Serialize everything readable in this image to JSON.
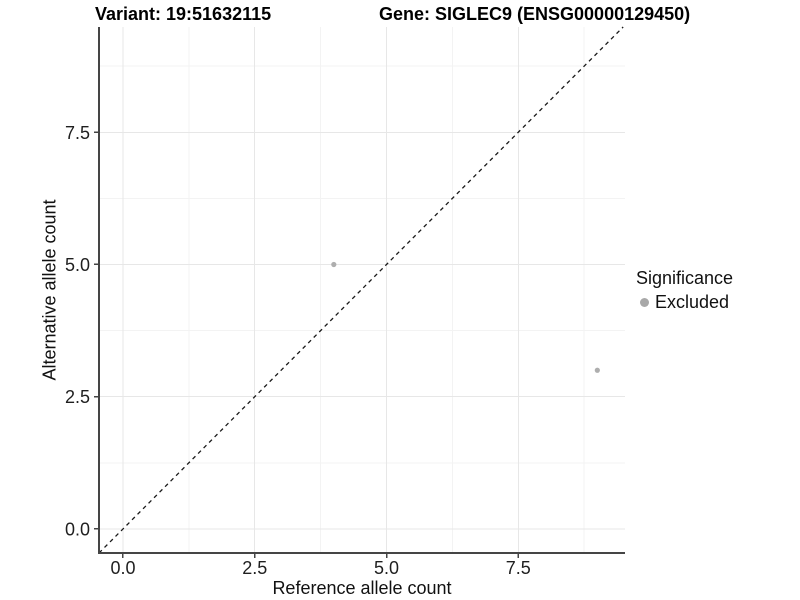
{
  "chart_data": {
    "type": "scatter",
    "title_left": "Variant: 19:51632115",
    "title_right": "Gene: SIGLEC9 (ENSG00000129450)",
    "xlabel": "Reference allele count",
    "ylabel": "Alternative allele count",
    "xlim": [
      -0.455,
      9.525
    ],
    "ylim": [
      -0.455,
      9.49
    ],
    "x_ticks": {
      "values": [
        0,
        2.5,
        5,
        7.5
      ],
      "labels": [
        "0.0",
        "2.5",
        "5.0",
        "7.5"
      ]
    },
    "y_ticks": {
      "values": [
        0,
        2.5,
        5,
        7.5
      ],
      "labels": [
        "0.0",
        "2.5",
        "5.0",
        "7.5"
      ]
    },
    "x_minor_ticks": [
      1.25,
      3.75,
      6.25,
      8.75
    ],
    "y_minor_ticks": [
      1.25,
      3.75,
      6.25,
      8.75
    ],
    "grid": {
      "enabled": true,
      "major_color": "#e7e7e7",
      "minor_color": "#f3f3f3"
    },
    "reference_line": {
      "equation": "y = x",
      "style": "dashed",
      "color": "#1a1a1a"
    },
    "series": [
      {
        "name": "Excluded",
        "color": "#aeaeae",
        "points": [
          {
            "x": 4,
            "y": 5
          },
          {
            "x": 9,
            "y": 3
          }
        ]
      }
    ],
    "legend": {
      "title": "Significance",
      "position": "right",
      "items": [
        {
          "label": "Excluded",
          "color": "#a8a8a8"
        }
      ]
    },
    "axis_color": "#454545",
    "tick_label_color": "#1f1f1f"
  }
}
